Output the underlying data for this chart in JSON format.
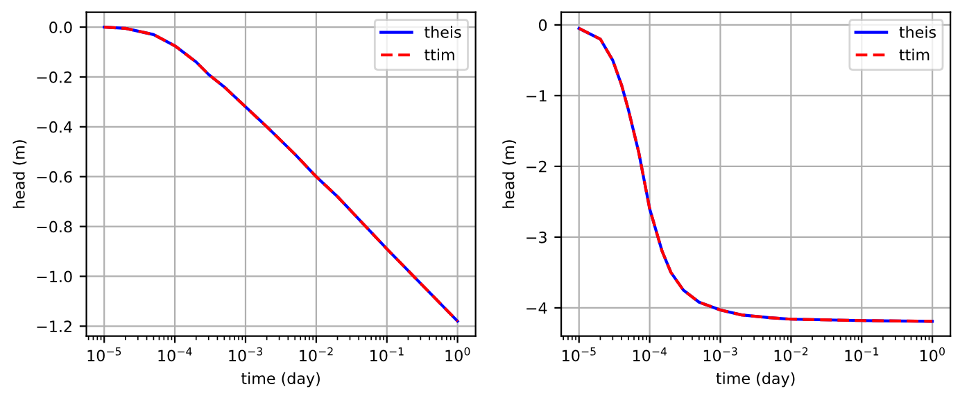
{
  "chart_data": [
    {
      "type": "line",
      "xlabel": "time (day)",
      "ylabel": "head (m)",
      "log": "x",
      "grid": true,
      "legend": "top right",
      "x": [
        1e-05,
        2e-05,
        5e-05,
        0.0001,
        0.0002,
        0.0003,
        0.0005,
        0.001,
        0.002,
        0.005,
        0.01,
        0.02,
        0.1,
        1
      ],
      "series": [
        {
          "name": "theis",
          "color": "#0000ff",
          "line_style": "solid",
          "values": [
            0.0,
            -0.005,
            -0.03,
            -0.075,
            -0.14,
            -0.19,
            -0.24,
            -0.32,
            -0.4,
            -0.51,
            -0.6,
            -0.68,
            -0.89,
            -1.18
          ]
        },
        {
          "name": "ttim",
          "color": "#ff0000",
          "line_style": "dashed",
          "values": [
            0.0,
            -0.005,
            -0.03,
            -0.075,
            -0.14,
            -0.19,
            -0.24,
            -0.32,
            -0.4,
            -0.51,
            -0.6,
            -0.68,
            -0.89,
            -1.18
          ]
        }
      ],
      "xlim": [
        5.6e-06,
        1.8
      ],
      "ylim": [
        -1.24,
        0.06
      ],
      "xticks": [
        {
          "value": 1e-05,
          "label": "10$^{−5}$"
        },
        {
          "value": 0.0001,
          "label": "10$^{−4}$"
        },
        {
          "value": 0.001,
          "label": "10$^{−3}$"
        },
        {
          "value": 0.01,
          "label": "10$^{−2}$"
        },
        {
          "value": 0.1,
          "label": "10$^{−1}$"
        },
        {
          "value": 1,
          "label": "10$^{0}$"
        }
      ],
      "yticks": [
        {
          "value": 0,
          "label": "0.0"
        },
        {
          "value": -0.2,
          "label": "−0.2"
        },
        {
          "value": -0.4,
          "label": "−0.4"
        },
        {
          "value": -0.6,
          "label": "−0.6"
        },
        {
          "value": -0.8,
          "label": "−0.8"
        },
        {
          "value": -1.0,
          "label": "−1.0"
        },
        {
          "value": -1.2,
          "label": "−1.2"
        }
      ]
    },
    {
      "type": "line",
      "xlabel": "time (day)",
      "ylabel": "head (m)",
      "log": "x",
      "grid": true,
      "legend": "top right",
      "x": [
        1e-05,
        2e-05,
        3e-05,
        4e-05,
        5e-05,
        7e-05,
        0.0001,
        0.00015,
        0.0002,
        0.0003,
        0.0005,
        0.001,
        0.002,
        0.005,
        0.01,
        0.1,
        1
      ],
      "series": [
        {
          "name": "theis",
          "color": "#0000ff",
          "line_style": "solid",
          "values": [
            -0.05,
            -0.2,
            -0.5,
            -0.85,
            -1.2,
            -1.8,
            -2.6,
            -3.2,
            -3.5,
            -3.75,
            -3.92,
            -4.03,
            -4.1,
            -4.14,
            -4.16,
            -4.18,
            -4.19
          ]
        },
        {
          "name": "ttim",
          "color": "#ff0000",
          "line_style": "dashed",
          "values": [
            -0.05,
            -0.2,
            -0.5,
            -0.85,
            -1.2,
            -1.8,
            -2.6,
            -3.2,
            -3.5,
            -3.75,
            -3.92,
            -4.03,
            -4.1,
            -4.14,
            -4.16,
            -4.18,
            -4.19
          ]
        }
      ],
      "xlim": [
        5.6e-06,
        1.8
      ],
      "ylim": [
        -4.4,
        0.18
      ],
      "xticks": [
        {
          "value": 1e-05,
          "label": "10$^{−5}$"
        },
        {
          "value": 0.0001,
          "label": "10$^{−4}$"
        },
        {
          "value": 0.001,
          "label": "10$^{−3}$"
        },
        {
          "value": 0.01,
          "label": "10$^{−2}$"
        },
        {
          "value": 0.1,
          "label": "10$^{−1}$"
        },
        {
          "value": 1,
          "label": "10$^{0}$"
        }
      ],
      "yticks": [
        {
          "value": 0,
          "label": "0"
        },
        {
          "value": -1,
          "label": "−1"
        },
        {
          "value": -2,
          "label": "−2"
        },
        {
          "value": -3,
          "label": "−3"
        },
        {
          "value": -4,
          "label": "−4"
        }
      ]
    }
  ]
}
